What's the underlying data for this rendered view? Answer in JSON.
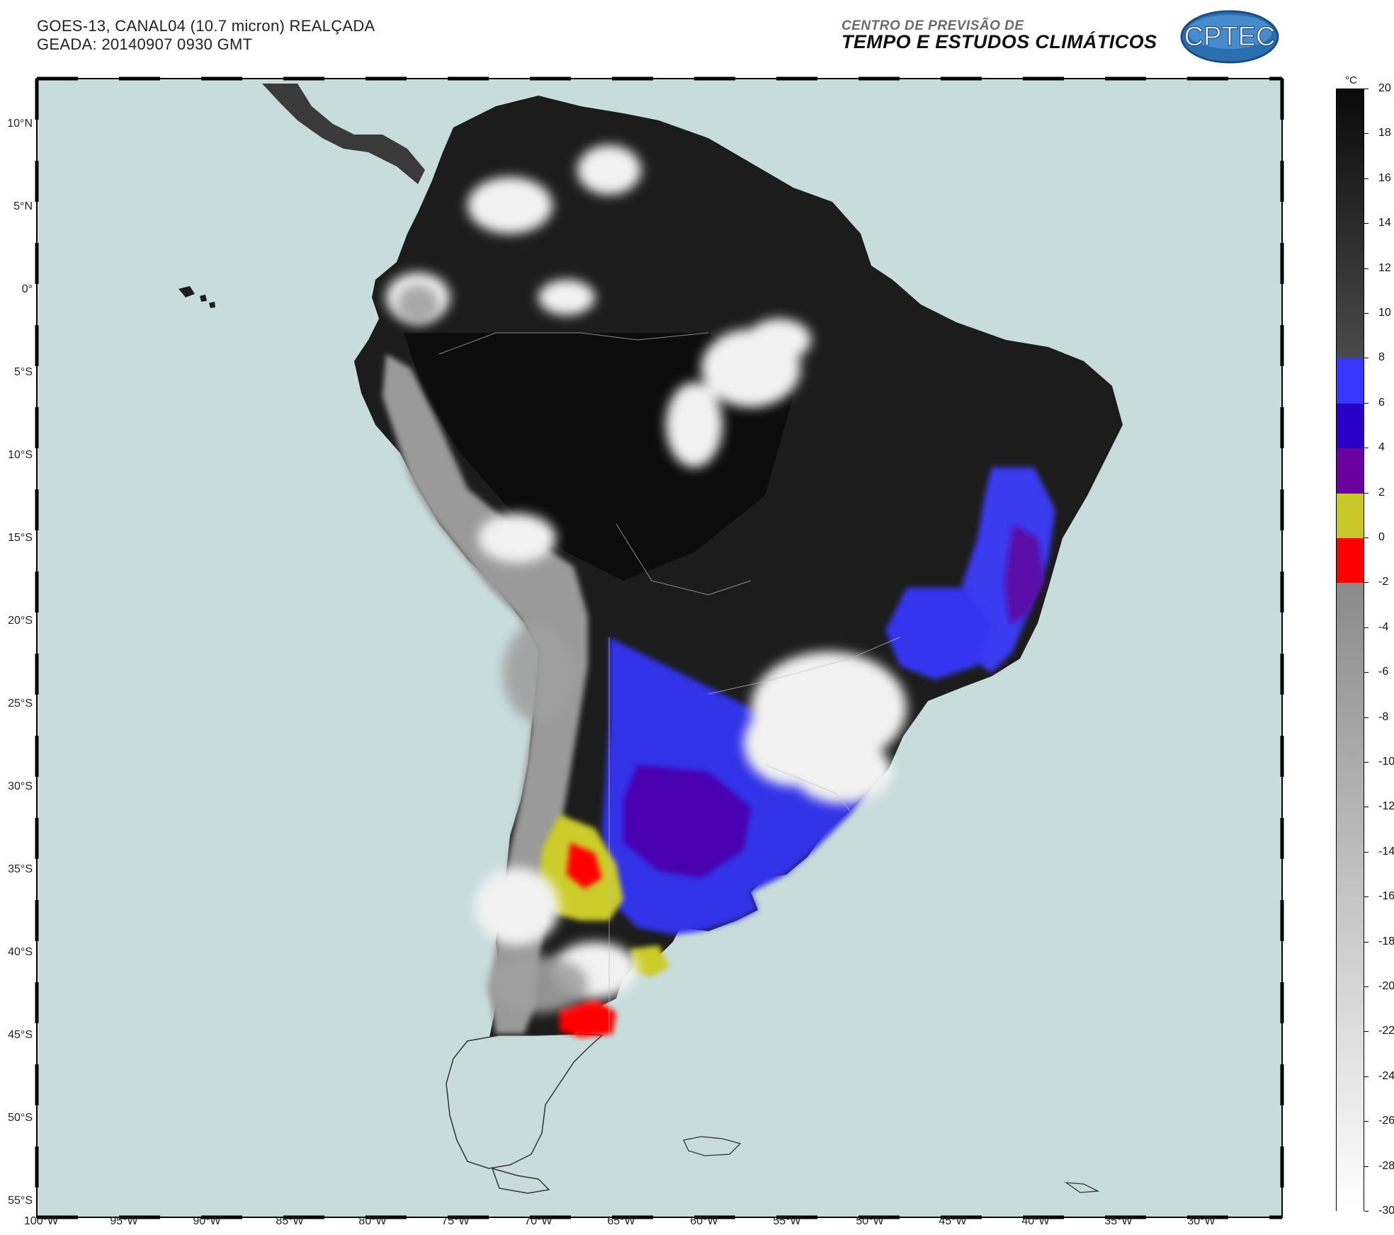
{
  "header": {
    "line1": "GOES-13, CANAL04 (10.7 micron) REALÇADA",
    "line2": "GEADA: 20140907 0930 GMT"
  },
  "org": {
    "sup": "CENTRO DE PREVISÃO DE",
    "main": "TEMPO E ESTUDOS CLIMÁTICOS",
    "logo_text": "CPTEC"
  },
  "map": {
    "ocean_color": "#c8dcdc",
    "lat_labels": [
      "10°N",
      "5°N",
      "0°",
      "5°S",
      "10°S",
      "15°S",
      "20°S",
      "25°S",
      "30°S",
      "35°S",
      "40°S",
      "45°S",
      "50°S",
      "55°S"
    ],
    "lon_labels": [
      "100°W",
      "95°W",
      "90°W",
      "85°W",
      "80°W",
      "75°W",
      "70°W",
      "65°W",
      "60°W",
      "55°W",
      "50°W",
      "45°W",
      "40°W",
      "35°W",
      "30°W"
    ]
  },
  "colorbar": {
    "unit": "°C",
    "ticks": [
      "20",
      "18",
      "16",
      "14",
      "12",
      "10",
      "8",
      "6",
      "4",
      "2",
      "0",
      "-2",
      "-4",
      "-6",
      "-8",
      "-10",
      "-12",
      "-14",
      "-16",
      "-18",
      "-20",
      "-22",
      "-24",
      "-26",
      "-28",
      "-30"
    ],
    "bands": [
      {
        "from": 20,
        "to": 8,
        "type": "gradient",
        "top_color": "#0a0a0a",
        "bottom_color": "#4a4a4a"
      },
      {
        "from": 8,
        "to": 6,
        "color": "#3737ff"
      },
      {
        "from": 6,
        "to": 4,
        "color": "#2a00c8"
      },
      {
        "from": 4,
        "to": 2,
        "color": "#6a00a0"
      },
      {
        "from": 2,
        "to": 0,
        "color": "#c8c82a"
      },
      {
        "from": 0,
        "to": -2,
        "color": "#ff0000"
      },
      {
        "from": -2,
        "to": -30,
        "type": "gradient",
        "top_color": "#8a8a8a",
        "bottom_color": "#ffffff"
      }
    ]
  }
}
